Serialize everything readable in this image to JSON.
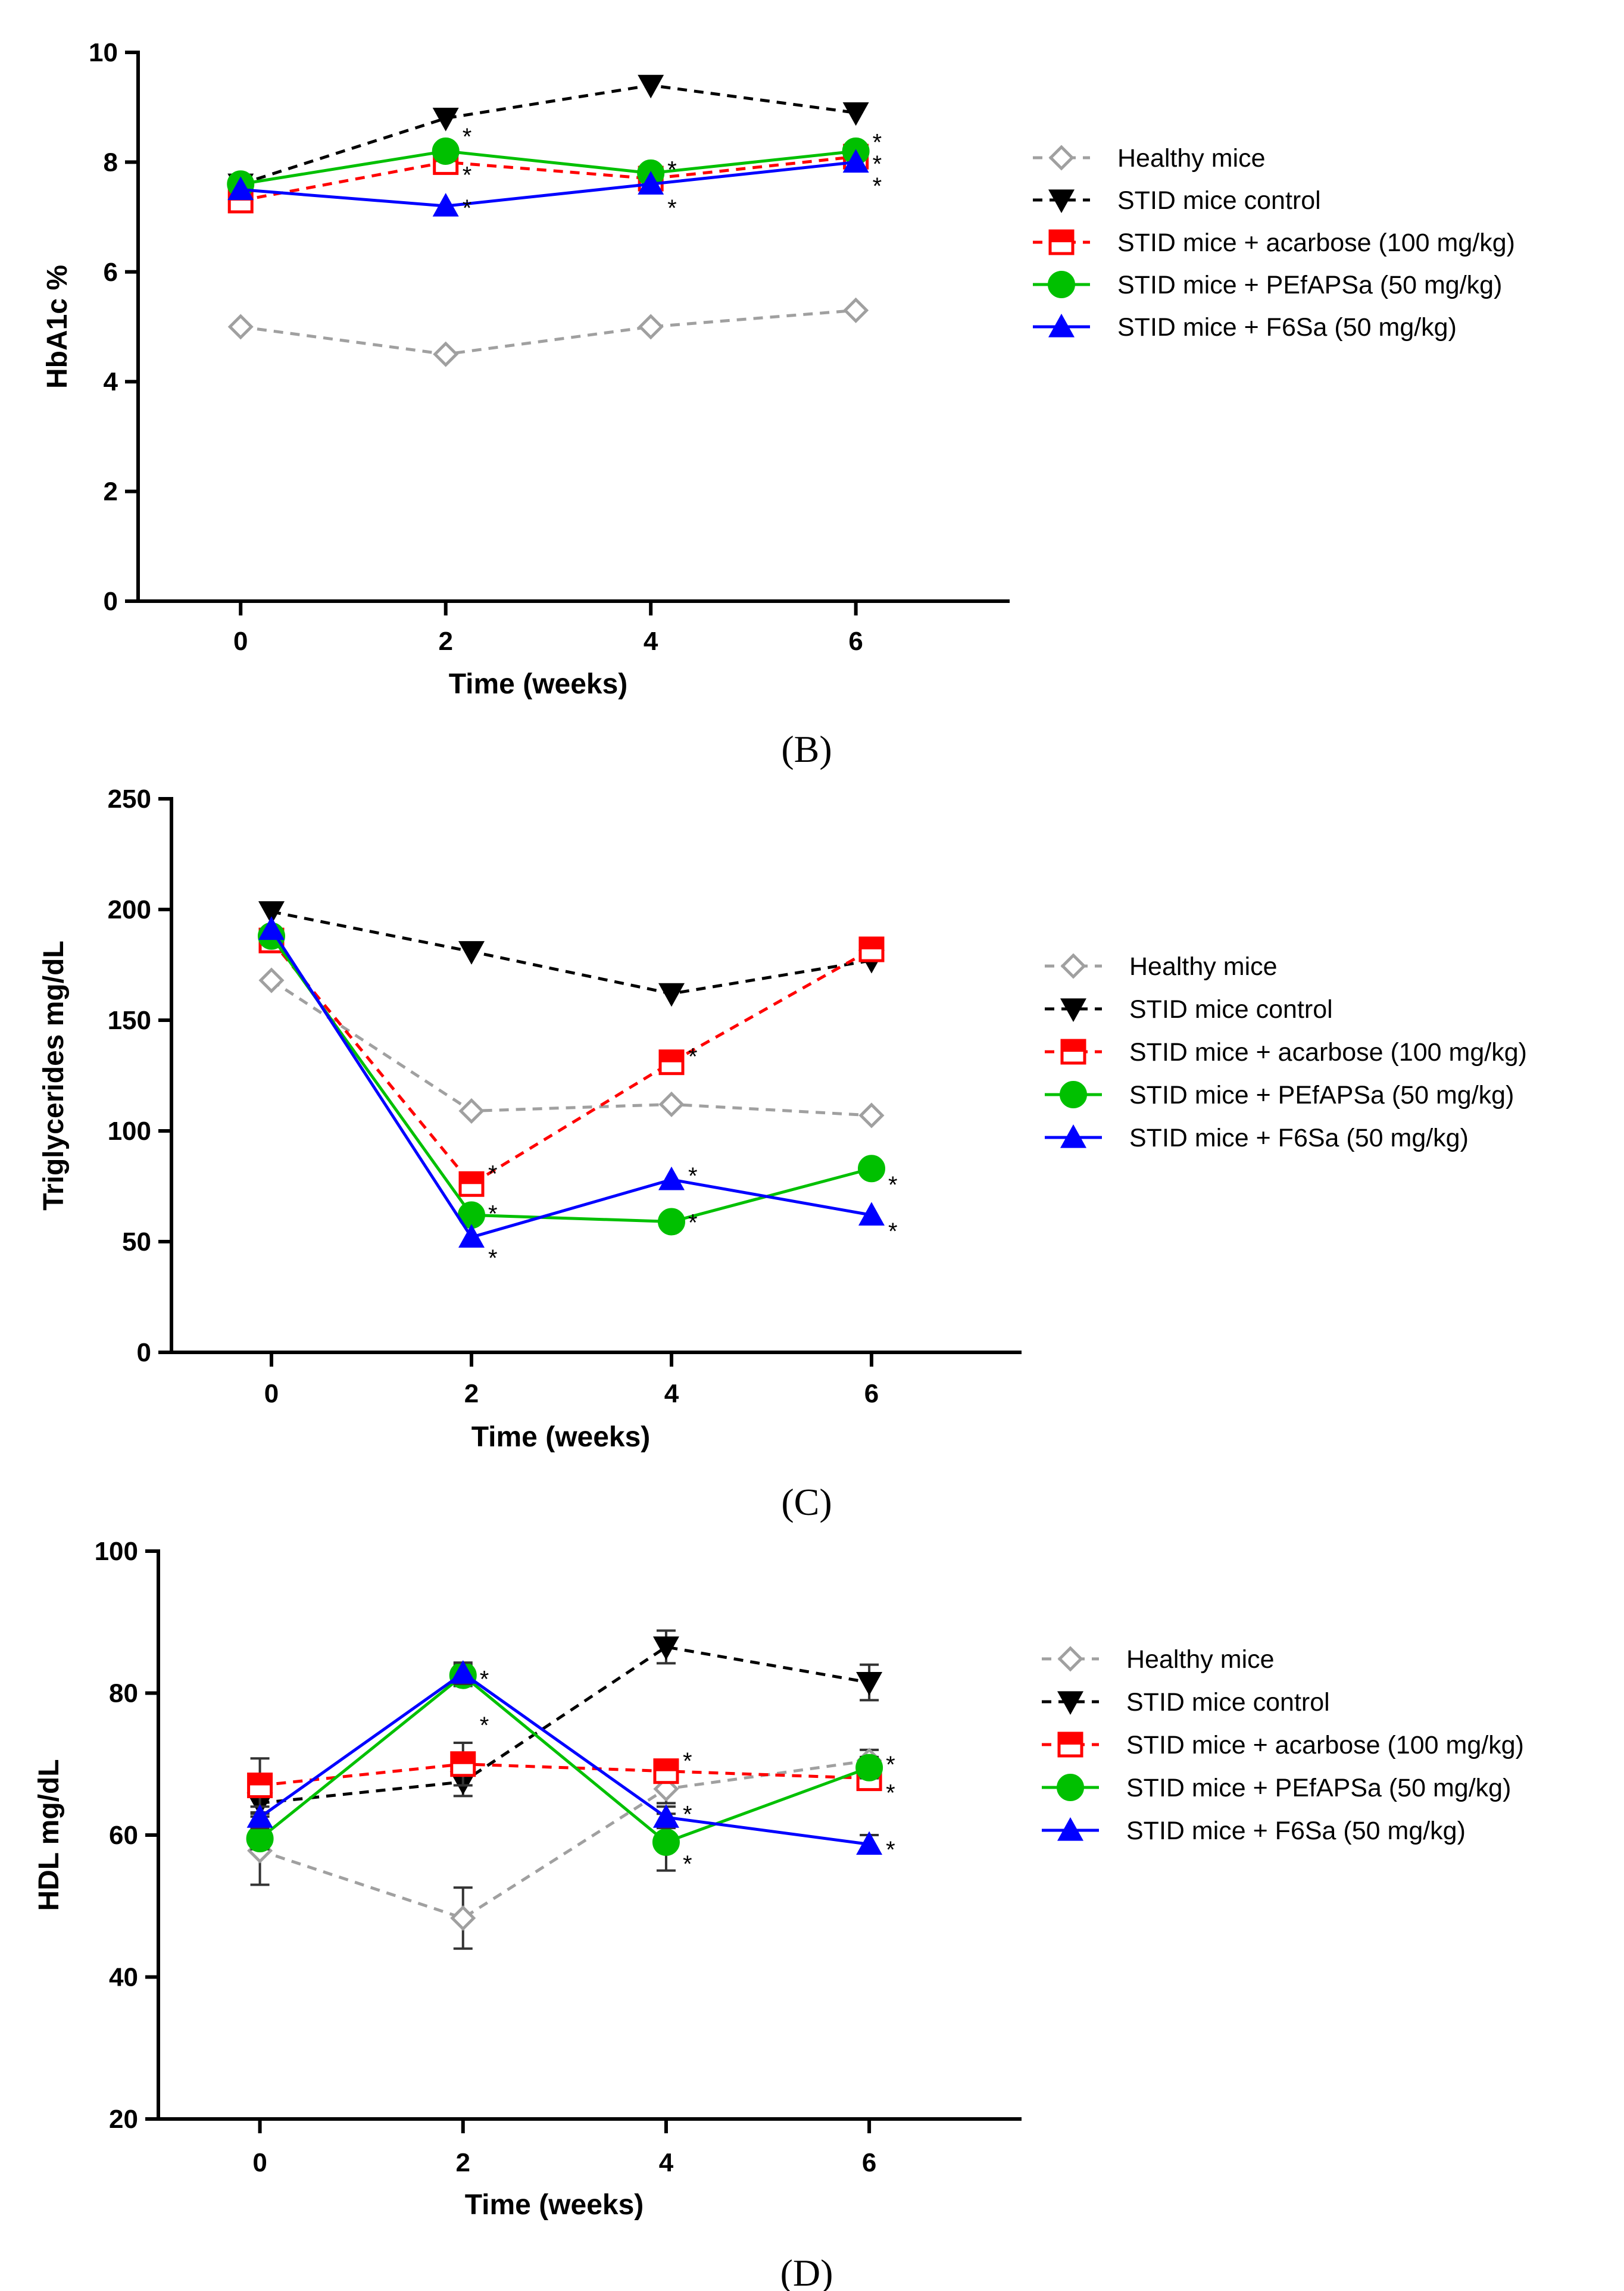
{
  "legend_entries": [
    {
      "key": "healthy",
      "label": "Healthy mice"
    },
    {
      "key": "control",
      "label": "STID mice control"
    },
    {
      "key": "acarbose",
      "label": "STID mice + acarbose (100 mg/kg)"
    },
    {
      "key": "pefapsa",
      "label": "STID mice + PEfAPSa (50 mg/kg)"
    },
    {
      "key": "f6sa",
      "label": "STID mice + F6Sa (50 mg/kg)"
    }
  ],
  "series_styles": {
    "healthy": {
      "color": "#a0a0a0",
      "dash": true,
      "marker": "diamond-open"
    },
    "control": {
      "color": "#000000",
      "dash": true,
      "marker": "triangle-down"
    },
    "acarbose": {
      "color": "#ff0000",
      "dash": true,
      "marker": "square-half"
    },
    "pefapsa": {
      "color": "#00c000",
      "dash": false,
      "marker": "circle"
    },
    "f6sa": {
      "color": "#0000ff",
      "dash": false,
      "marker": "triangle-up"
    }
  },
  "significance_mark": "*",
  "chart_data": [
    {
      "id": "hba1c",
      "type": "line",
      "panel_label": "(B)",
      "panel_label_position": "below",
      "xlabel": "Time (weeks)",
      "ylabel": "HbA1c %",
      "x": [
        0,
        2,
        4,
        6
      ],
      "xlim": [
        -1,
        7.5
      ],
      "ylim": [
        0,
        10
      ],
      "yticks": [
        0,
        2,
        4,
        6,
        8,
        10
      ],
      "series": [
        {
          "key": "healthy",
          "name": "Healthy mice",
          "values": [
            5.0,
            4.5,
            5.0,
            5.3
          ]
        },
        {
          "key": "control",
          "name": "STID mice control",
          "values": [
            7.6,
            8.8,
            9.4,
            8.9
          ]
        },
        {
          "key": "acarbose",
          "name": "STID mice + acarbose (100 mg/kg)",
          "values": [
            7.3,
            8.0,
            7.7,
            8.1
          ]
        },
        {
          "key": "pefapsa",
          "name": "STID mice + PEfAPSa (50 mg/kg)",
          "values": [
            7.6,
            8.2,
            7.8,
            8.2
          ]
        },
        {
          "key": "f6sa",
          "name": "STID mice + F6Sa (50 mg/kg)",
          "values": [
            7.5,
            7.2,
            7.6,
            8.0
          ]
        }
      ],
      "significance": [
        {
          "x": 2,
          "y": 8.6
        },
        {
          "x": 2,
          "y": 7.9
        },
        {
          "x": 2,
          "y": 7.3
        },
        {
          "x": 4,
          "y": 8.0
        },
        {
          "x": 4,
          "y": 8.0
        },
        {
          "x": 4,
          "y": 7.3
        },
        {
          "x": 6,
          "y": 8.5
        },
        {
          "x": 6,
          "y": 8.1
        },
        {
          "x": 6,
          "y": 7.7
        }
      ]
    },
    {
      "id": "triglycerides",
      "type": "line",
      "panel_label": "(C)",
      "panel_label_position": "below",
      "xlabel": "Time (weeks)",
      "ylabel": "Triglycerides mg/dL",
      "x": [
        0,
        2,
        4,
        6
      ],
      "xlim": [
        -1,
        7.5
      ],
      "ylim": [
        0,
        250
      ],
      "yticks": [
        0,
        50,
        100,
        150,
        200,
        250
      ],
      "series": [
        {
          "key": "healthy",
          "name": "Healthy mice",
          "values": [
            168,
            109,
            112,
            107
          ]
        },
        {
          "key": "control",
          "name": "STID mice control",
          "values": [
            199,
            181,
            162,
            177
          ]
        },
        {
          "key": "acarbose",
          "name": "STID mice + acarbose (100 mg/kg)",
          "values": [
            186,
            76,
            131,
            182
          ]
        },
        {
          "key": "pefapsa",
          "name": "STID mice + PEfAPSa (50 mg/kg)",
          "values": [
            188,
            62,
            59,
            83
          ]
        },
        {
          "key": "f6sa",
          "name": "STID mice + F6Sa (50 mg/kg)",
          "values": [
            191,
            52,
            78,
            62
          ]
        }
      ],
      "significance": [
        {
          "x": 2,
          "y": 84
        },
        {
          "x": 2,
          "y": 66
        },
        {
          "x": 2,
          "y": 46
        },
        {
          "x": 4,
          "y": 137
        },
        {
          "x": 4,
          "y": 83
        },
        {
          "x": 4,
          "y": 62
        },
        {
          "x": 6,
          "y": 79
        },
        {
          "x": 6,
          "y": 58
        }
      ]
    },
    {
      "id": "hdl",
      "type": "line",
      "panel_label": "(D)",
      "panel_label_position": "below",
      "xlabel": "Time (weeks)",
      "ylabel": "HDL mg/dL",
      "x": [
        0,
        2,
        4,
        6
      ],
      "xlim": [
        -1,
        7.5
      ],
      "ylim": [
        20,
        100
      ],
      "yticks": [
        20,
        40,
        60,
        80,
        100
      ],
      "series": [
        {
          "key": "healthy",
          "name": "Healthy mice",
          "values": [
            57.8,
            48.3,
            66.5,
            70.5
          ],
          "errors": [
            4.8,
            4.3,
            2.0,
            1.5
          ]
        },
        {
          "key": "control",
          "name": "STID mice control",
          "values": [
            64.5,
            67.5,
            86.5,
            81.5
          ],
          "errors": [
            1.5,
            2.0,
            2.3,
            2.5
          ]
        },
        {
          "key": "acarbose",
          "name": "STID mice + acarbose (100 mg/kg)",
          "values": [
            67.0,
            70.0,
            69.0,
            68.0
          ],
          "errors": [
            3.8,
            3.0,
            1.5,
            1.3
          ]
        },
        {
          "key": "pefapsa",
          "name": "STID mice + PEfAPSa (50 mg/kg)",
          "values": [
            59.5,
            82.5,
            59.0,
            69.5
          ],
          "errors": [
            1.5,
            1.5,
            4.0,
            1.5
          ]
        },
        {
          "key": "f6sa",
          "name": "STID mice + F6Sa (50 mg/kg)",
          "values": [
            62.5,
            82.8,
            62.5,
            58.7
          ],
          "errors": [
            1.5,
            1.5,
            1.5,
            1.3
          ]
        }
      ],
      "significance": [
        {
          "x": 2,
          "y": 83
        },
        {
          "x": 2,
          "y": 76.5
        },
        {
          "x": 4,
          "y": 71.5
        },
        {
          "x": 4,
          "y": 64
        },
        {
          "x": 4,
          "y": 57
        },
        {
          "x": 6,
          "y": 71
        },
        {
          "x": 6,
          "y": 67
        },
        {
          "x": 6,
          "y": 59
        }
      ]
    }
  ]
}
